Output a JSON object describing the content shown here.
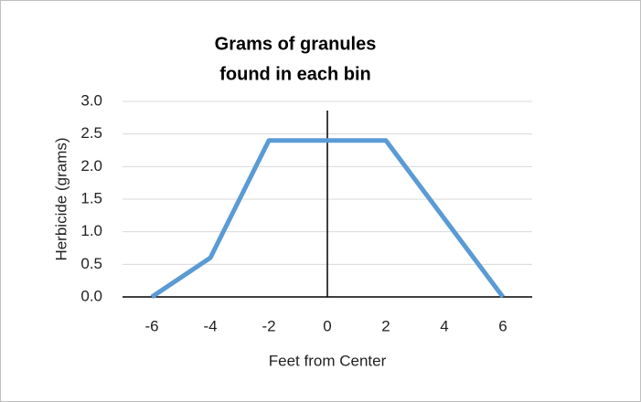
{
  "chart_data": {
    "type": "line",
    "title": [
      "Grams of granules",
      "found in each bin"
    ],
    "x_label": "Feet from Center",
    "y_label": "Herbicide (grams)",
    "x": [
      -6,
      -4,
      -2,
      0,
      2,
      4,
      6
    ],
    "series": [
      {
        "name": "Herbicide",
        "color": "#5b9bd5",
        "values": [
          0,
          0.6,
          2.4,
          2.4,
          2.4,
          1.2,
          0
        ]
      }
    ],
    "xlim": [
      -7,
      7
    ],
    "xticks": [
      -6,
      -4,
      -2,
      0,
      2,
      4,
      6
    ],
    "ylim": [
      0,
      3
    ],
    "yticks": [
      {
        "value": 0,
        "label": "0.0"
      },
      {
        "value": 0.5,
        "label": "0.5"
      },
      {
        "value": 1,
        "label": "1.0"
      },
      {
        "value": 1.5,
        "label": "1.5"
      },
      {
        "value": 2,
        "label": "2.0"
      },
      {
        "value": 2.5,
        "label": "2.5"
      },
      {
        "value": 3,
        "label": "3.0"
      }
    ],
    "grid": true
  }
}
